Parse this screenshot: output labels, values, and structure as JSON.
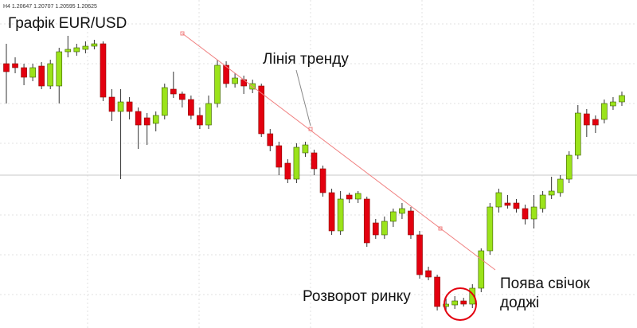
{
  "header": "H4  1.20647 1.20707 1.20595 1.20625",
  "chart_data": {
    "type": "candlestick",
    "title": "Графік EUR/USD",
    "annotations": [
      "Лінія тренду",
      "Розворот ринку",
      "Поява свічок",
      "доджі"
    ],
    "up_color": "#9be31a",
    "down_color": "#e3000f",
    "ylim": [
      0,
      412
    ],
    "open": [
      332,
      332,
      327,
      315,
      329,
      304,
      304,
      347,
      347,
      350,
      354,
      357,
      290,
      272,
      284,
      272,
      264,
      257,
      267,
      300,
      294,
      287,
      267,
      255,
      282,
      330,
      307,
      312,
      300,
      304,
      244,
      229,
      207,
      187,
      220,
      220,
      200,
      170,
      122,
      167,
      162,
      162,
      132,
      117,
      134,
      144,
      147,
      117,
      72,
      64,
      27,
      29,
      34,
      30,
      50,
      97,
      152,
      157,
      157,
      150,
      137,
      150,
      167,
      170,
      187,
      217,
      269,
      262,
      262,
      279,
      284
    ],
    "close": [
      322,
      327,
      315,
      327,
      304,
      332,
      347,
      350,
      352,
      354,
      357,
      290,
      272,
      284,
      272,
      255,
      255,
      267,
      302,
      294,
      287,
      267,
      255,
      282,
      330,
      307,
      314,
      304,
      307,
      244,
      229,
      202,
      187,
      227,
      230,
      200,
      170,
      122,
      162,
      162,
      169,
      107,
      117,
      134,
      146,
      150,
      117,
      67,
      64,
      27,
      30,
      34,
      30,
      50,
      97,
      152,
      170,
      154,
      150,
      137,
      152,
      167,
      172,
      187,
      217,
      270,
      255,
      255,
      282,
      284,
      292
    ],
    "high": [
      357,
      340,
      332,
      332,
      334,
      337,
      352,
      367,
      357,
      360,
      362,
      360,
      300,
      300,
      290,
      277,
      270,
      272,
      307,
      322,
      297,
      292,
      277,
      292,
      337,
      335,
      320,
      317,
      312,
      307,
      250,
      234,
      212,
      232,
      234,
      224,
      204,
      175,
      172,
      170,
      172,
      165,
      137,
      140,
      150,
      157,
      152,
      122,
      77,
      67,
      37,
      40,
      38,
      55,
      100,
      157,
      175,
      167,
      162,
      155,
      167,
      172,
      190,
      192,
      222,
      280,
      275,
      267,
      287,
      290,
      297
    ],
    "low": [
      282,
      320,
      305,
      310,
      300,
      300,
      282,
      340,
      342,
      345,
      350,
      285,
      260,
      187,
      262,
      225,
      230,
      247,
      262,
      289,
      277,
      262,
      250,
      250,
      277,
      302,
      302,
      294,
      295,
      240,
      222,
      192,
      182,
      182,
      215,
      192,
      165,
      117,
      117,
      157,
      157,
      102,
      112,
      112,
      127,
      137,
      112,
      62,
      60,
      22,
      22,
      24,
      27,
      25,
      45,
      92,
      145,
      150,
      145,
      130,
      125,
      145,
      162,
      165,
      182,
      212,
      240,
      245,
      257,
      274,
      279
    ]
  }
}
